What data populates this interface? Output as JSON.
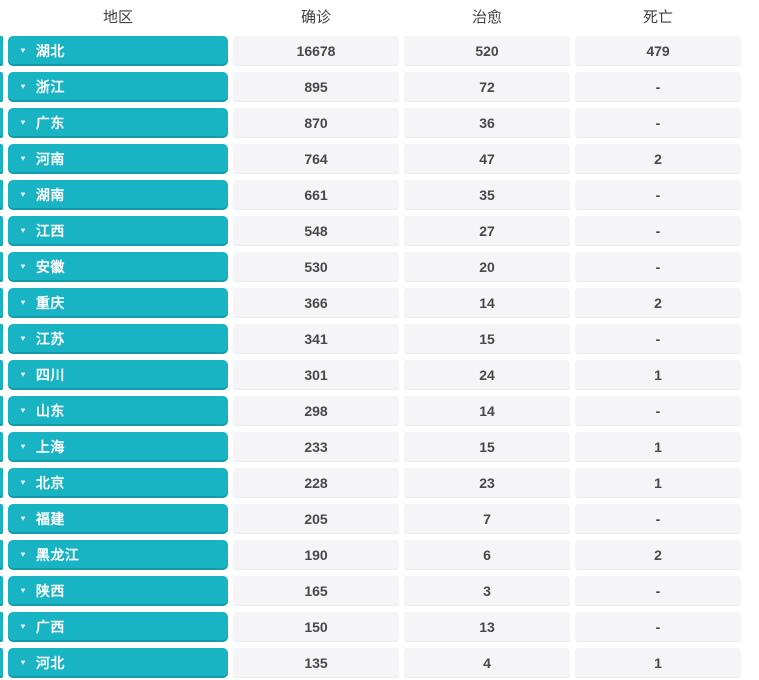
{
  "table": {
    "headers": {
      "region": "地区",
      "confirmed": "确诊",
      "cured": "治愈",
      "deaths": "死亡"
    },
    "rows": [
      {
        "region": "湖北",
        "confirmed": "16678",
        "cured": "520",
        "deaths": "479"
      },
      {
        "region": "浙江",
        "confirmed": "895",
        "cured": "72",
        "deaths": "-"
      },
      {
        "region": "广东",
        "confirmed": "870",
        "cured": "36",
        "deaths": "-"
      },
      {
        "region": "河南",
        "confirmed": "764",
        "cured": "47",
        "deaths": "2"
      },
      {
        "region": "湖南",
        "confirmed": "661",
        "cured": "35",
        "deaths": "-"
      },
      {
        "region": "江西",
        "confirmed": "548",
        "cured": "27",
        "deaths": "-"
      },
      {
        "region": "安徽",
        "confirmed": "530",
        "cured": "20",
        "deaths": "-"
      },
      {
        "region": "重庆",
        "confirmed": "366",
        "cured": "14",
        "deaths": "2"
      },
      {
        "region": "江苏",
        "confirmed": "341",
        "cured": "15",
        "deaths": "-"
      },
      {
        "region": "四川",
        "confirmed": "301",
        "cured": "24",
        "deaths": "1"
      },
      {
        "region": "山东",
        "confirmed": "298",
        "cured": "14",
        "deaths": "-"
      },
      {
        "region": "上海",
        "confirmed": "233",
        "cured": "15",
        "deaths": "1"
      },
      {
        "region": "北京",
        "confirmed": "228",
        "cured": "23",
        "deaths": "1"
      },
      {
        "region": "福建",
        "confirmed": "205",
        "cured": "7",
        "deaths": "-"
      },
      {
        "region": "黑龙江",
        "confirmed": "190",
        "cured": "6",
        "deaths": "2"
      },
      {
        "region": "陕西",
        "confirmed": "165",
        "cured": "3",
        "deaths": "-"
      },
      {
        "region": "广西",
        "confirmed": "150",
        "cured": "13",
        "deaths": "-"
      },
      {
        "region": "河北",
        "confirmed": "135",
        "cured": "4",
        "deaths": "1"
      }
    ]
  },
  "icons": {
    "chevron_down": "▼"
  },
  "colors": {
    "accent_teal": "#18b4c4",
    "cell_bg": "#f5f5f8",
    "text_dark": "#48484a",
    "header_text": "#3f3f41"
  }
}
